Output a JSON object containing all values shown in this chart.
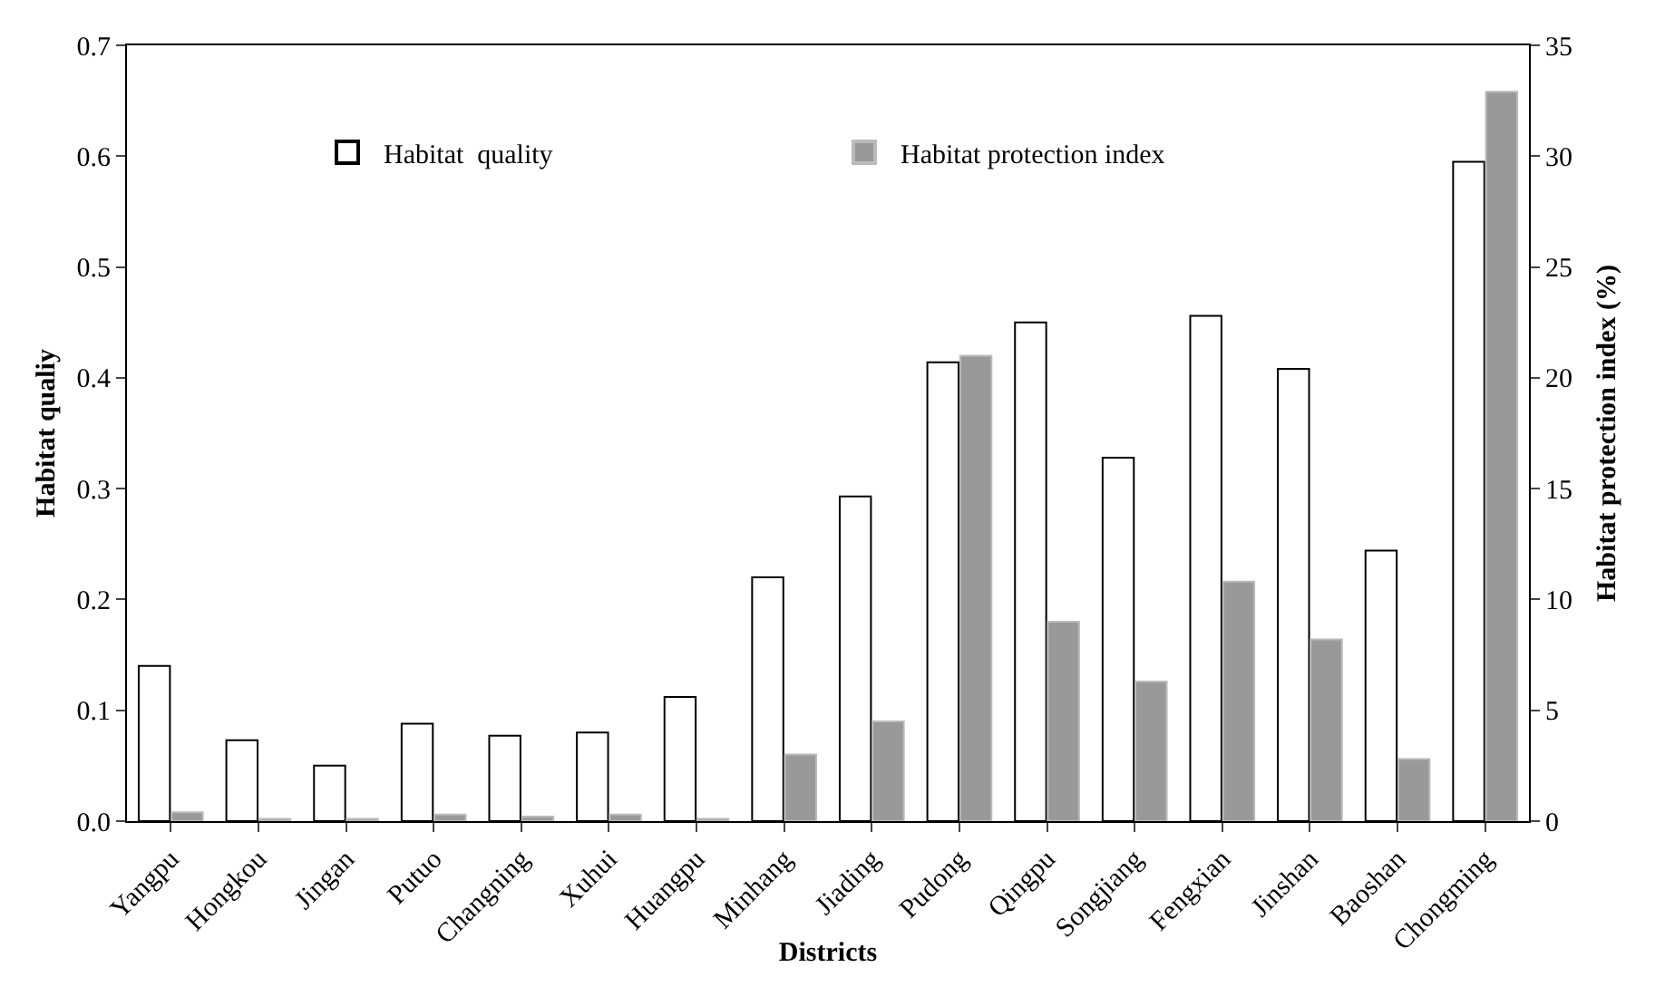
{
  "chart_data": {
    "type": "bar",
    "xlabel": "Districts",
    "ylabel": "Habitat qualiy",
    "y2label": "Habitat protection index (%)",
    "categories": [
      "Yangpu",
      "Hongkou",
      "Jingan",
      "Putuo",
      "Changning",
      "Xuhui",
      "Huangpu",
      "Minhang",
      "Jiading",
      "Pudong",
      "Qingpu",
      "Songjiang",
      "Fengxian",
      "Jinshan",
      "Baoshan",
      "Chongming"
    ],
    "series": [
      {
        "name": "Habitat  quality",
        "color": "#ffffff",
        "values": [
          0.14,
          0.073,
          0.05,
          0.088,
          0.077,
          0.08,
          0.112,
          0.22,
          0.293,
          0.414,
          0.45,
          0.328,
          0.456,
          0.408,
          0.244,
          0.595
        ]
      },
      {
        "name": "Habitat protection index",
        "color": "#999999",
        "axis": "y2",
        "values": [
          0.4,
          0.1,
          0.1,
          0.3,
          0.2,
          0.3,
          0.1,
          3.0,
          4.5,
          21.0,
          9.0,
          6.3,
          10.8,
          8.2,
          2.8,
          32.9
        ]
      }
    ],
    "ylim": [
      0,
      0.7
    ],
    "yticks": [
      {
        "value": 0,
        "label": "0.0"
      },
      0.1,
      0.2,
      0.3,
      0.4,
      0.5,
      0.6,
      0.7
    ],
    "y2lim": [
      0,
      35
    ],
    "y2ticks": [
      0,
      5,
      10,
      15,
      20,
      25,
      30,
      35
    ],
    "grid": false,
    "legend": "top"
  }
}
